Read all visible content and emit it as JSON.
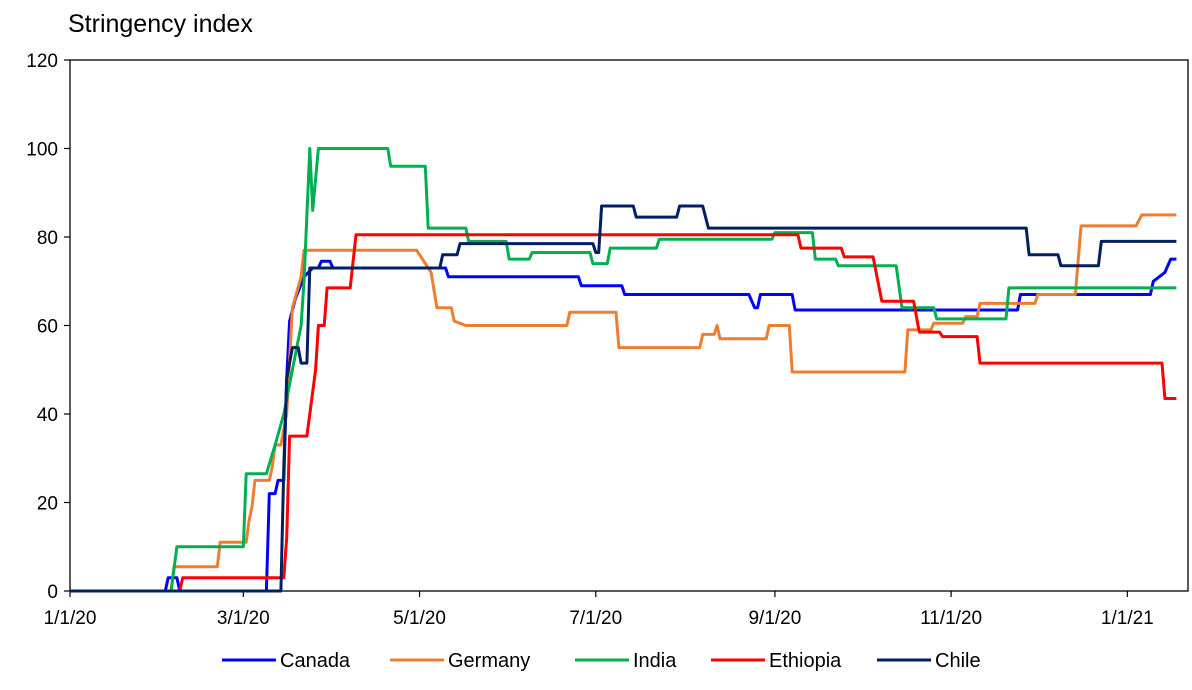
{
  "chart_data": {
    "type": "line",
    "title": "Stringency index",
    "xlabel": "",
    "ylabel": "",
    "ylim": [
      0,
      120
    ],
    "yticks": [
      0,
      20,
      40,
      60,
      80,
      100,
      120
    ],
    "xlim": [
      "2020-01-01",
      "2021-01-22"
    ],
    "xticks": [
      "1/1/20",
      "3/1/20",
      "5/1/20",
      "7/1/20",
      "9/1/20",
      "11/1/20",
      "1/1/21"
    ],
    "xtick_dates": [
      "2020-01-01",
      "2020-03-01",
      "2020-05-01",
      "2020-07-01",
      "2020-09-01",
      "2020-11-01",
      "2021-01-01"
    ],
    "grid": false,
    "legend": "bottom",
    "series": [
      {
        "name": "Canada",
        "color": "#0000ff",
        "points": [
          [
            "2020-01-01",
            0
          ],
          [
            "2020-02-03",
            0
          ],
          [
            "2020-02-04",
            3
          ],
          [
            "2020-02-07",
            3
          ],
          [
            "2020-02-08",
            0
          ],
          [
            "2020-03-09",
            0
          ],
          [
            "2020-03-10",
            22
          ],
          [
            "2020-03-12",
            22
          ],
          [
            "2020-03-13",
            25
          ],
          [
            "2020-03-15",
            25
          ],
          [
            "2020-03-16",
            48
          ],
          [
            "2020-03-17",
            61
          ],
          [
            "2020-03-19",
            66
          ],
          [
            "2020-03-22",
            71
          ],
          [
            "2020-03-25",
            73
          ],
          [
            "2020-03-27",
            73
          ],
          [
            "2020-03-28",
            74.5
          ],
          [
            "2020-03-31",
            74.5
          ],
          [
            "2020-04-01",
            73
          ],
          [
            "2020-05-10",
            73
          ],
          [
            "2020-05-11",
            71
          ],
          [
            "2020-06-25",
            71
          ],
          [
            "2020-06-26",
            69
          ],
          [
            "2020-07-10",
            69
          ],
          [
            "2020-07-11",
            67
          ],
          [
            "2020-08-23",
            67
          ],
          [
            "2020-08-25",
            64
          ],
          [
            "2020-08-26",
            64
          ],
          [
            "2020-08-27",
            67
          ],
          [
            "2020-09-07",
            67
          ],
          [
            "2020-09-08",
            63.5
          ],
          [
            "2020-11-24",
            63.5
          ],
          [
            "2020-11-25",
            67
          ],
          [
            "2021-01-09",
            67
          ],
          [
            "2021-01-10",
            70
          ],
          [
            "2021-01-14",
            72
          ],
          [
            "2021-01-16",
            75
          ],
          [
            "2021-01-18",
            75
          ]
        ]
      },
      {
        "name": "Germany",
        "color": "#ed7d31",
        "points": [
          [
            "2020-01-01",
            0
          ],
          [
            "2020-02-05",
            0
          ],
          [
            "2020-02-06",
            5.5
          ],
          [
            "2020-02-21",
            5.5
          ],
          [
            "2020-02-22",
            11
          ],
          [
            "2020-02-23",
            11
          ],
          [
            "2020-02-24",
            11
          ],
          [
            "2020-03-02",
            11
          ],
          [
            "2020-03-03",
            16
          ],
          [
            "2020-03-04",
            19
          ],
          [
            "2020-03-05",
            25
          ],
          [
            "2020-03-10",
            25
          ],
          [
            "2020-03-11",
            28
          ],
          [
            "2020-03-12",
            33
          ],
          [
            "2020-03-14",
            33
          ],
          [
            "2020-03-16",
            40
          ],
          [
            "2020-03-18",
            64
          ],
          [
            "2020-03-21",
            71
          ],
          [
            "2020-03-22",
            77
          ],
          [
            "2020-04-10",
            77
          ],
          [
            "2020-04-30",
            77
          ],
          [
            "2020-05-05",
            72
          ],
          [
            "2020-05-07",
            64
          ],
          [
            "2020-05-12",
            64
          ],
          [
            "2020-05-13",
            61
          ],
          [
            "2020-05-17",
            60
          ],
          [
            "2020-06-21",
            60
          ],
          [
            "2020-06-22",
            63
          ],
          [
            "2020-07-08",
            63
          ],
          [
            "2020-07-09",
            55
          ],
          [
            "2020-08-06",
            55
          ],
          [
            "2020-08-07",
            58
          ],
          [
            "2020-08-11",
            58
          ],
          [
            "2020-08-12",
            60
          ],
          [
            "2020-08-13",
            57
          ],
          [
            "2020-08-29",
            57
          ],
          [
            "2020-08-30",
            60
          ],
          [
            "2020-09-06",
            60
          ],
          [
            "2020-09-07",
            49.5
          ],
          [
            "2020-10-16",
            49.5
          ],
          [
            "2020-10-17",
            59
          ],
          [
            "2020-10-25",
            59
          ],
          [
            "2020-10-26",
            60.5
          ],
          [
            "2020-11-05",
            60.5
          ],
          [
            "2020-11-06",
            62
          ],
          [
            "2020-11-10",
            62
          ],
          [
            "2020-11-11",
            65
          ],
          [
            "2020-11-30",
            65
          ],
          [
            "2020-12-01",
            67
          ],
          [
            "2020-12-14",
            67
          ],
          [
            "2020-12-16",
            82.5
          ],
          [
            "2021-01-04",
            82.5
          ],
          [
            "2021-01-06",
            85
          ],
          [
            "2021-01-18",
            85
          ]
        ]
      },
      {
        "name": "India",
        "color": "#00b050",
        "points": [
          [
            "2020-01-01",
            0
          ],
          [
            "2020-02-05",
            0
          ],
          [
            "2020-02-07",
            10
          ],
          [
            "2020-02-28",
            10
          ],
          [
            "2020-03-01",
            10
          ],
          [
            "2020-03-02",
            26.5
          ],
          [
            "2020-03-09",
            26.5
          ],
          [
            "2020-03-12",
            33
          ],
          [
            "2020-03-15",
            40
          ],
          [
            "2020-03-18",
            50
          ],
          [
            "2020-03-21",
            60
          ],
          [
            "2020-03-22",
            70
          ],
          [
            "2020-03-24",
            100
          ],
          [
            "2020-03-25",
            86
          ],
          [
            "2020-03-27",
            100
          ],
          [
            "2020-04-20",
            100
          ],
          [
            "2020-04-21",
            96
          ],
          [
            "2020-05-03",
            96
          ],
          [
            "2020-05-04",
            82
          ],
          [
            "2020-05-17",
            82
          ],
          [
            "2020-05-18",
            79
          ],
          [
            "2020-05-31",
            79
          ],
          [
            "2020-06-01",
            75
          ],
          [
            "2020-06-08",
            75
          ],
          [
            "2020-06-09",
            76.5
          ],
          [
            "2020-06-29",
            76.5
          ],
          [
            "2020-06-30",
            74
          ],
          [
            "2020-07-05",
            74
          ],
          [
            "2020-07-06",
            77.5
          ],
          [
            "2020-07-22",
            77.5
          ],
          [
            "2020-07-23",
            79.5
          ],
          [
            "2020-08-31",
            79.5
          ],
          [
            "2020-09-01",
            81
          ],
          [
            "2020-09-14",
            81
          ],
          [
            "2020-09-15",
            75
          ],
          [
            "2020-09-22",
            75
          ],
          [
            "2020-09-23",
            73.5
          ],
          [
            "2020-10-13",
            73.5
          ],
          [
            "2020-10-15",
            64
          ],
          [
            "2020-10-26",
            64
          ],
          [
            "2020-10-27",
            61.5
          ],
          [
            "2020-11-20",
            61.5
          ],
          [
            "2020-11-21",
            68.5
          ],
          [
            "2021-01-18",
            68.5
          ]
        ]
      },
      {
        "name": "Ethiopia",
        "color": "#ff0000",
        "points": [
          [
            "2020-01-01",
            0
          ],
          [
            "2020-02-08",
            0
          ],
          [
            "2020-02-09",
            3
          ],
          [
            "2020-03-15",
            3
          ],
          [
            "2020-03-16",
            12
          ],
          [
            "2020-03-17",
            35
          ],
          [
            "2020-03-23",
            35
          ],
          [
            "2020-03-24",
            40
          ],
          [
            "2020-03-26",
            50
          ],
          [
            "2020-03-27",
            60
          ],
          [
            "2020-03-29",
            60
          ],
          [
            "2020-03-30",
            68.5
          ],
          [
            "2020-04-07",
            68.5
          ],
          [
            "2020-04-09",
            80.5
          ],
          [
            "2020-09-09",
            80.5
          ],
          [
            "2020-09-10",
            77.5
          ],
          [
            "2020-09-24",
            77.5
          ],
          [
            "2020-09-25",
            75.5
          ],
          [
            "2020-10-05",
            75.5
          ],
          [
            "2020-10-08",
            65.5
          ],
          [
            "2020-10-19",
            65.5
          ],
          [
            "2020-10-21",
            58.5
          ],
          [
            "2020-10-28",
            58.5
          ],
          [
            "2020-10-29",
            57.5
          ],
          [
            "2020-11-10",
            57.5
          ],
          [
            "2020-11-11",
            51.5
          ],
          [
            "2021-01-13",
            51.5
          ],
          [
            "2021-01-14",
            43.5
          ],
          [
            "2021-01-18",
            43.5
          ]
        ]
      },
      {
        "name": "Chile",
        "color": "#002060",
        "points": [
          [
            "2020-01-01",
            0
          ],
          [
            "2020-03-14",
            0
          ],
          [
            "2020-03-15",
            28
          ],
          [
            "2020-03-16",
            48
          ],
          [
            "2020-03-18",
            55
          ],
          [
            "2020-03-20",
            55
          ],
          [
            "2020-03-21",
            51.5
          ],
          [
            "2020-03-23",
            51.5
          ],
          [
            "2020-03-24",
            73
          ],
          [
            "2020-05-08",
            73
          ],
          [
            "2020-05-09",
            76
          ],
          [
            "2020-05-14",
            76
          ],
          [
            "2020-05-15",
            78.5
          ],
          [
            "2020-06-30",
            78.5
          ],
          [
            "2020-07-01",
            76.5
          ],
          [
            "2020-07-02",
            76.5
          ],
          [
            "2020-07-03",
            87
          ],
          [
            "2020-07-14",
            87
          ],
          [
            "2020-07-15",
            84.5
          ],
          [
            "2020-07-29",
            84.5
          ],
          [
            "2020-07-30",
            87
          ],
          [
            "2020-08-07",
            87
          ],
          [
            "2020-08-09",
            82
          ],
          [
            "2020-11-27",
            82
          ],
          [
            "2020-11-28",
            76
          ],
          [
            "2020-12-08",
            76
          ],
          [
            "2020-12-09",
            73.5
          ],
          [
            "2020-12-22",
            73.5
          ],
          [
            "2020-12-23",
            79
          ],
          [
            "2021-01-18",
            79
          ]
        ]
      }
    ]
  }
}
